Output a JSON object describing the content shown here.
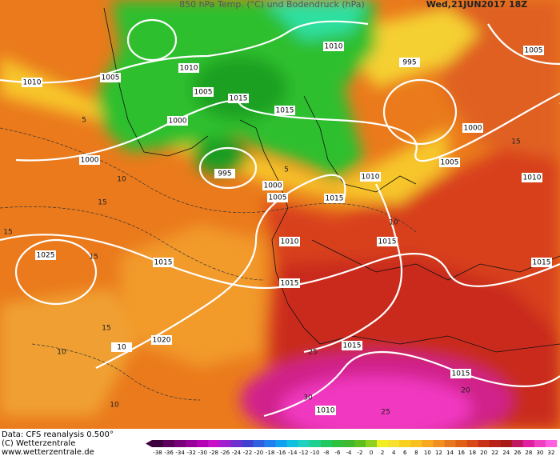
{
  "header": {
    "title": "850 hPa Temp. (°C) und Bodendruck (hPa)",
    "timestamp": "Wed,21JUN2017 18Z"
  },
  "footer": [
    "Data: CFS reanalysis 0.500°",
    "(C) Wetterzentrale",
    "www.wetterzentrale.de"
  ],
  "colorbar": {
    "labels": [
      -38,
      -36,
      -34,
      -32,
      -30,
      -28,
      -26,
      -24,
      -22,
      -20,
      -18,
      -16,
      -14,
      -12,
      -10,
      -8,
      -6,
      -4,
      -2,
      0,
      2,
      4,
      6,
      8,
      10,
      12,
      14,
      16,
      18,
      20,
      22,
      24,
      26,
      28,
      30,
      32
    ]
  },
  "isobar_labels": [
    1010,
    1005,
    1010,
    1005,
    1015,
    1000,
    1015,
    1010,
    995,
    1005,
    1000,
    1005,
    1000,
    995,
    1000,
    1005,
    1010,
    1015,
    1010,
    1010,
    1015,
    1025,
    1015,
    1015,
    1015,
    1020,
    10,
    1015,
    1015,
    1010
  ],
  "isotherm_labels": [
    5,
    10,
    15,
    15,
    15,
    15,
    10,
    10,
    25,
    30,
    25,
    20,
    10,
    15,
    5
  ]
}
